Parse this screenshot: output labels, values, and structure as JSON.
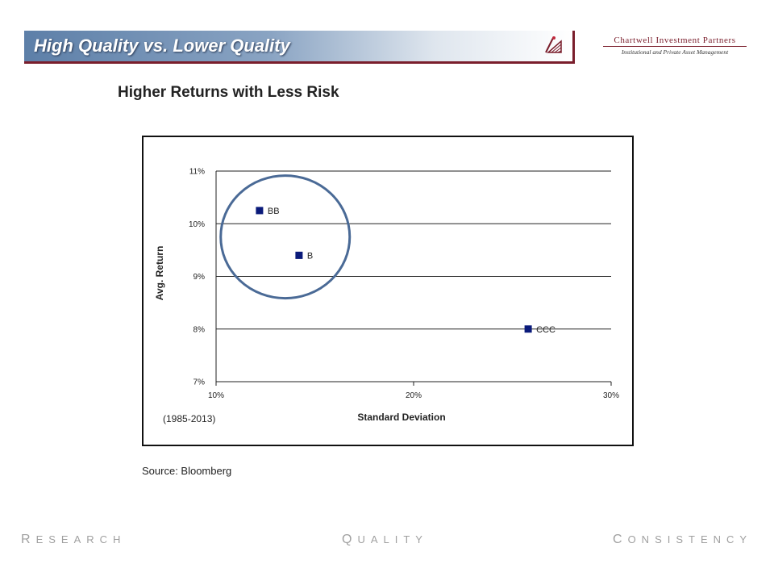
{
  "header": {
    "title": "High Quality vs. Lower Quality",
    "brand_name": "Chartwell Investment Partners",
    "brand_tagline": "Institutional and Private Asset Management",
    "brand_color": "#7a1e2c",
    "title_bar_color": "#5d7fa8"
  },
  "subtitle": "Higher Returns with Less Risk",
  "chart_data": {
    "type": "scatter",
    "xlabel": "Standard Deviation",
    "ylabel": "Avg. Return",
    "xlim": [
      0.1,
      0.3
    ],
    "ylim": [
      0.07,
      0.11
    ],
    "x_ticks": [
      0.1,
      0.2,
      0.3
    ],
    "x_tick_labels": [
      "10%",
      "20%",
      "30%"
    ],
    "y_ticks": [
      0.07,
      0.08,
      0.09,
      0.1,
      0.11
    ],
    "y_tick_labels": [
      "7%",
      "8%",
      "9%",
      "10%",
      "11%"
    ],
    "grid": "horizontal",
    "marker_color": "#0a1a7a",
    "points": [
      {
        "label": "BB",
        "x": 0.122,
        "y": 0.1025
      },
      {
        "label": "B",
        "x": 0.142,
        "y": 0.094
      },
      {
        "label": "CCC",
        "x": 0.258,
        "y": 0.08
      }
    ],
    "highlight_circle": {
      "cx": 0.135,
      "cy": 0.0975,
      "color": "#4a6a96"
    }
  },
  "period_note": "(1985-2013)",
  "source": "Source: Bloomberg",
  "footer": {
    "words": [
      {
        "first": "R",
        "rest": "ESEARCH"
      },
      {
        "first": "Q",
        "rest": "UALITY"
      },
      {
        "first": "C",
        "rest": "ONSISTENCY"
      }
    ]
  }
}
